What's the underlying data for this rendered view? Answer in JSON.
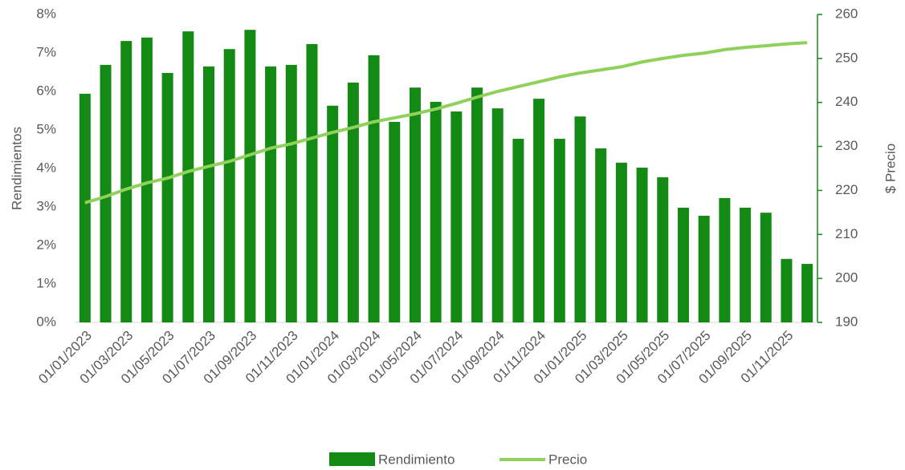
{
  "chart_data": {
    "type": "bar",
    "y_label": "Rendimientos",
    "y2_label": "$ Precio",
    "categories": [
      "01/01/2023",
      null,
      "01/03/2023",
      null,
      "01/05/2023",
      null,
      "01/07/2023",
      null,
      "01/09/2023",
      null,
      "01/11/2023",
      null,
      "01/01/2024",
      null,
      "01/03/2024",
      null,
      "01/05/2024",
      null,
      "01/07/2024",
      null,
      "01/09/2024",
      null,
      "01/11/2024",
      null,
      "01/01/2025",
      null,
      "01/03/2025",
      null,
      "01/05/2025",
      null,
      "01/07/2025",
      null,
      "01/09/2025",
      null,
      "01/11/2025",
      null
    ],
    "series": [
      {
        "name": "Rendimiento",
        "type": "bar",
        "axis": "y",
        "color": "#138a13",
        "values": [
          5.94,
          6.69,
          7.31,
          7.4,
          6.48,
          7.56,
          6.65,
          7.1,
          7.6,
          6.65,
          6.69,
          7.23,
          5.63,
          6.23,
          6.94,
          5.21,
          6.1,
          5.73,
          5.48,
          6.1,
          5.56,
          4.77,
          5.81,
          4.77,
          5.35,
          4.52,
          4.15,
          4.02,
          3.77,
          2.98,
          2.77,
          3.23,
          2.98,
          2.85,
          1.65,
          1.52
        ]
      },
      {
        "name": "Precio",
        "type": "line",
        "axis": "y2",
        "color": "#8fd15a",
        "values": [
          217.2,
          218.6,
          220.3,
          221.7,
          222.8,
          224.3,
          225.5,
          226.6,
          228.1,
          229.6,
          230.6,
          231.9,
          233.2,
          234.3,
          235.6,
          236.5,
          237.4,
          238.5,
          239.8,
          241.2,
          242.5,
          243.6,
          244.7,
          245.8,
          246.7,
          247.4,
          248.1,
          249.2,
          250.0,
          250.7,
          251.2,
          252.0,
          252.5,
          252.9,
          253.3,
          253.6
        ]
      }
    ],
    "ylim": [
      0,
      8
    ],
    "yticks": [
      {
        "value": 0,
        "label": "0%"
      },
      {
        "value": 1,
        "label": "1%"
      },
      {
        "value": 2,
        "label": "2%"
      },
      {
        "value": 3,
        "label": "3%"
      },
      {
        "value": 4,
        "label": "4%"
      },
      {
        "value": 5,
        "label": "5%"
      },
      {
        "value": 6,
        "label": "6%"
      },
      {
        "value": 7,
        "label": "7%"
      },
      {
        "value": 8,
        "label": "8%"
      }
    ],
    "y2lim": [
      190,
      260
    ],
    "y2ticks": [
      190,
      200,
      210,
      220,
      230,
      240,
      250,
      260
    ],
    "grid": false,
    "legend": "bottom",
    "y2_axis_color": "#138a13"
  }
}
